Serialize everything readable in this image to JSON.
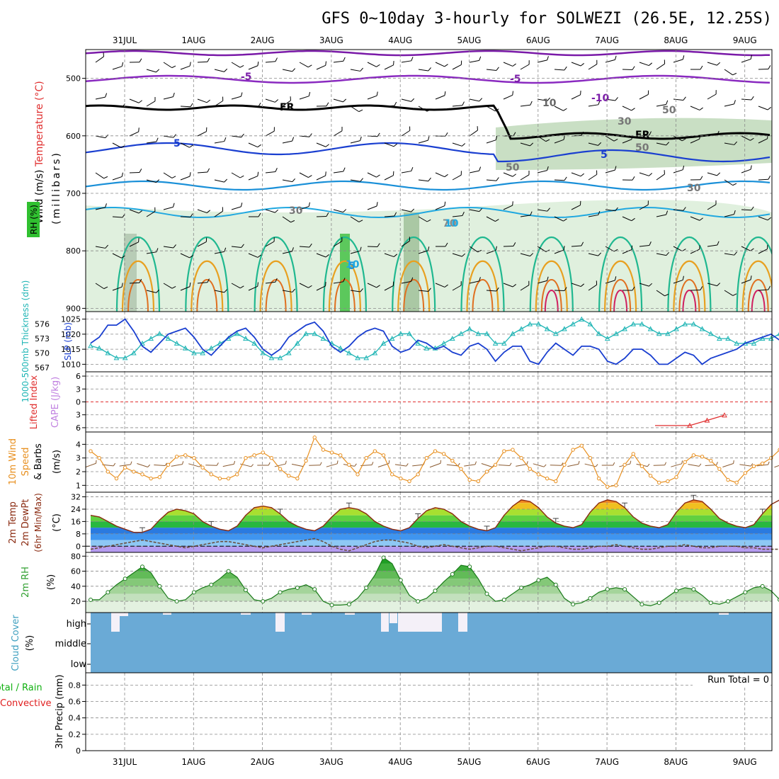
{
  "title": "GFS 0~10day 3-hourly for SOLWEZI (26.5E, 12.25S)",
  "colors": {
    "slp": "#1a3fd0",
    "thickness": "#1fb5b5",
    "lifted_index": "#e03030",
    "cape": "#c080e0",
    "wind10": "#e89020",
    "temp_line": "#8a2a10",
    "dewpt": "#6a5040",
    "rh2m": "#30a030",
    "cloud": "#6aaad6",
    "total_rain": "#10b010",
    "convective": "#e02020",
    "rh_label": "#30c030",
    "wind_label": "#000000",
    "temperature_label": "#e03030"
  },
  "chart_data": [
    {
      "panel": "upper_air",
      "type": "heatmap",
      "x_dates": [
        "31JUL",
        "1AUG",
        "2AUG",
        "3AUG",
        "4AUG",
        "5AUG",
        "6AUG",
        "7AUG",
        "8AUG",
        "9AUG"
      ],
      "y_ticks": [
        500,
        600,
        700,
        800,
        900
      ],
      "ylabel": "(millibars)",
      "ylabel_parts": [
        "Wind (m/s)",
        "Temperature (°C)",
        "RH (%)"
      ],
      "contour_labels": [
        "-5",
        "-5",
        "FR",
        "5",
        "5",
        "5",
        "FR",
        "10",
        "-10",
        "30",
        "50",
        "50",
        "50",
        "30",
        "30",
        "70",
        "10",
        "10"
      ]
    },
    {
      "panel": "slp_thickness",
      "type": "line",
      "ylabel_left": "1000-500mb Thickness (dm)",
      "ylabel_right": "SLP (mb)",
      "thickness_ticks": [
        567,
        570,
        573,
        576
      ],
      "slp_ticks": [
        1010,
        1015,
        1020,
        1025
      ],
      "series": [
        {
          "name": "SLP (mb)",
          "values": [
            1017,
            1019,
            1023,
            1023,
            1025,
            1021,
            1016,
            1014,
            1017,
            1020,
            1021,
            1022,
            1019,
            1015,
            1013,
            1016,
            1019,
            1021,
            1022,
            1019,
            1015,
            1013,
            1015,
            1019,
            1021,
            1023,
            1024,
            1021,
            1016,
            1014,
            1016,
            1019,
            1021,
            1022,
            1021,
            1016,
            1014,
            1015,
            1018,
            1017,
            1015,
            1016,
            1014,
            1013,
            1016,
            1017,
            1015,
            1011,
            1014,
            1016,
            1016,
            1011,
            1010,
            1014,
            1017,
            1015,
            1013,
            1016,
            1016,
            1015,
            1011,
            1010,
            1012,
            1015,
            1015,
            1013,
            1010,
            1010,
            1012,
            1014,
            1013,
            1010,
            1012,
            1013,
            1014,
            1015,
            1017,
            1018,
            1019,
            1020,
            1018
          ]
        },
        {
          "name": "Thickness (dm)",
          "values": [
            571.5,
            571,
            570,
            569,
            569,
            570,
            572,
            573,
            574,
            573,
            572,
            571,
            570,
            570,
            571,
            572,
            573,
            574,
            573,
            572,
            570,
            569,
            569,
            570,
            572,
            574,
            574,
            573,
            572,
            571,
            570,
            569,
            569,
            570,
            572,
            573,
            574,
            574,
            572,
            571,
            571,
            572,
            573,
            574,
            575,
            574,
            574,
            572,
            572,
            574,
            575,
            576,
            576,
            575,
            574,
            575,
            576,
            577,
            576,
            574,
            573,
            574,
            575,
            576,
            576,
            575,
            574,
            574,
            575,
            576,
            576,
            575,
            574,
            573,
            573,
            572,
            572,
            572,
            573,
            573,
            574
          ]
        }
      ]
    },
    {
      "panel": "lifted_index_cape",
      "type": "line",
      "ylabel_left": "Lifted Index",
      "ylabel_right": "CAPE (J/kg)",
      "y_ticks": [
        -6,
        -3,
        0,
        3,
        6
      ],
      "series": [
        {
          "name": "Lifted Index",
          "values": [
            5.5,
            5.5,
            5.5,
            4.3,
            3.1
          ]
        }
      ]
    },
    {
      "panel": "wind_10m",
      "type": "line",
      "ylabel": "10m Wind Speed & Barbs (m/s)",
      "y_ticks": [
        1,
        2,
        3,
        4
      ],
      "series": [
        {
          "name": "10m Wind Speed",
          "values": [
            3.5,
            3.0,
            2.0,
            1.5,
            2.3,
            2.0,
            1.8,
            1.5,
            1.6,
            2.5,
            3.1,
            3.2,
            3.0,
            2.3,
            1.8,
            1.5,
            1.5,
            1.8,
            3.0,
            3.2,
            3.4,
            3.0,
            2.2,
            1.7,
            1.5,
            2.8,
            4.5,
            3.6,
            3.4,
            3.2,
            2.5,
            1.8,
            3.0,
            3.5,
            3.2,
            1.8,
            1.5,
            1.3,
            1.8,
            3.0,
            3.5,
            3.3,
            2.8,
            2.2,
            1.4,
            1.3,
            2.0,
            2.5,
            3.5,
            3.6,
            3.0,
            2.2,
            1.8,
            1.5,
            1.3,
            2.5,
            3.6,
            3.9,
            3.0,
            1.5,
            0.9,
            1.0,
            2.5,
            3.3,
            2.4,
            1.7,
            1.2,
            1.3,
            1.6,
            2.7,
            3.2,
            3.1,
            2.8,
            2.2,
            1.4,
            1.2,
            1.9,
            2.4,
            2.6,
            3.0,
            3.6
          ]
        }
      ]
    },
    {
      "panel": "temp_dewpt",
      "type": "area",
      "ylabel": "2m Temp 2m DewPt (6hr Min/Max) (°C)",
      "y_ticks": [
        0,
        8,
        16,
        24,
        32
      ],
      "series": [
        {
          "name": "2m Temp",
          "values": [
            20,
            19,
            16,
            13,
            11,
            9,
            9,
            11,
            17,
            22,
            24,
            23,
            21,
            16,
            13,
            11,
            10,
            13,
            20,
            25,
            26,
            25,
            21,
            16,
            13,
            11,
            10,
            13,
            19,
            24,
            25,
            24,
            21,
            16,
            13,
            11,
            10,
            12,
            18,
            23,
            25,
            24,
            21,
            16,
            13,
            11,
            10,
            12,
            20,
            26,
            30,
            29,
            25,
            19,
            15,
            13,
            12,
            14,
            22,
            28,
            30,
            29,
            25,
            19,
            15,
            13,
            12,
            14,
            22,
            28,
            30,
            29,
            24,
            18,
            15,
            13,
            12,
            14,
            21,
            27,
            30
          ]
        },
        {
          "name": "2m DewPt",
          "values": [
            -2,
            -1,
            0,
            1,
            2,
            3,
            4,
            3,
            2,
            1,
            0,
            -1,
            0,
            1,
            2,
            3,
            3,
            2,
            1,
            0,
            -1,
            0,
            1,
            2,
            3,
            4,
            5,
            3,
            0,
            -2,
            -3,
            -1,
            1,
            3,
            4,
            4,
            3,
            2,
            0,
            -1,
            0,
            1,
            0,
            -1,
            -2,
            -1,
            0,
            0,
            -1,
            -2,
            -3,
            -2,
            -1,
            0,
            0,
            -1,
            -2,
            -2,
            -1,
            0,
            0,
            1,
            0,
            -1,
            -2,
            -2,
            -1,
            0,
            0,
            1,
            0,
            -1,
            -1,
            0,
            0,
            0,
            -1,
            -1,
            -2,
            -2,
            -2
          ]
        }
      ]
    },
    {
      "panel": "rh_2m",
      "type": "area",
      "ylabel": "2m RH (%)",
      "y_ticks": [
        20,
        40,
        60,
        80
      ],
      "series": [
        {
          "name": "2m RH",
          "values": [
            22,
            22,
            32,
            42,
            50,
            58,
            66,
            58,
            40,
            24,
            20,
            22,
            32,
            38,
            42,
            50,
            60,
            52,
            35,
            22,
            20,
            24,
            32,
            36,
            38,
            42,
            36,
            20,
            15,
            15,
            16,
            24,
            38,
            55,
            78,
            70,
            48,
            28,
            20,
            24,
            34,
            46,
            56,
            68,
            66,
            50,
            30,
            20,
            22,
            30,
            38,
            42,
            48,
            52,
            42,
            24,
            16,
            18,
            24,
            32,
            36,
            38,
            36,
            26,
            16,
            14,
            18,
            26,
            34,
            38,
            36,
            28,
            18,
            16,
            20,
            26,
            32,
            38,
            40,
            34,
            22
          ]
        }
      ]
    },
    {
      "panel": "cloud_cover",
      "type": "heatmap",
      "ylabel": "Cloud Cover (%)",
      "levels": [
        "high",
        "middle",
        "low"
      ]
    },
    {
      "panel": "precip_3hr",
      "type": "bar",
      "ylabel": "3hr Precip (mm)",
      "ylabel_parts": [
        "Total / Rain",
        "Convective"
      ],
      "y_ticks": [
        0,
        0.2,
        0.4,
        0.6,
        0.8
      ],
      "run_total_label": "Run Total = 0",
      "values": []
    }
  ]
}
